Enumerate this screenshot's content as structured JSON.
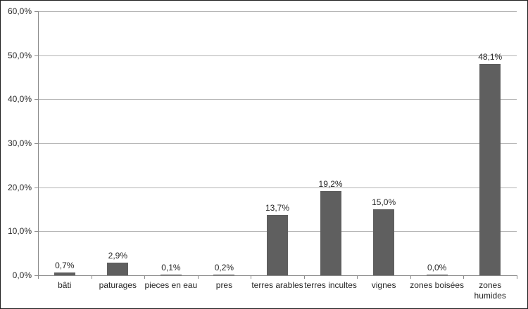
{
  "chart_data": {
    "type": "bar",
    "title": "",
    "xlabel": "",
    "ylabel": "",
    "categories": [
      "bâti",
      "paturages",
      "pieces en eau",
      "pres",
      "terres arables",
      "terres incultes",
      "vignes",
      "zones boisées",
      "zones\nhumides"
    ],
    "values": [
      0.7,
      2.9,
      0.1,
      0.2,
      13.7,
      19.2,
      15.0,
      0.0,
      48.1
    ],
    "data_labels": [
      "0,7%",
      "2,9%",
      "0,1%",
      "0,2%",
      "13,7%",
      "19,2%",
      "15,0%",
      "0,0%",
      "48,1%"
    ],
    "y_tick_labels": [
      "0,0%",
      "10,0%",
      "20,0%",
      "30,0%",
      "40,0%",
      "50,0%",
      "60,0%"
    ],
    "ylim": [
      0,
      60
    ],
    "y_step": 10,
    "grid": true,
    "legend_position": "none",
    "colors": {
      "bar": "#5f5f5f",
      "gridline": "#b3b3b3",
      "axis": "#8a8a8a",
      "text": "#262626",
      "background": "#ffffff",
      "border": "#1f1f1f"
    }
  }
}
